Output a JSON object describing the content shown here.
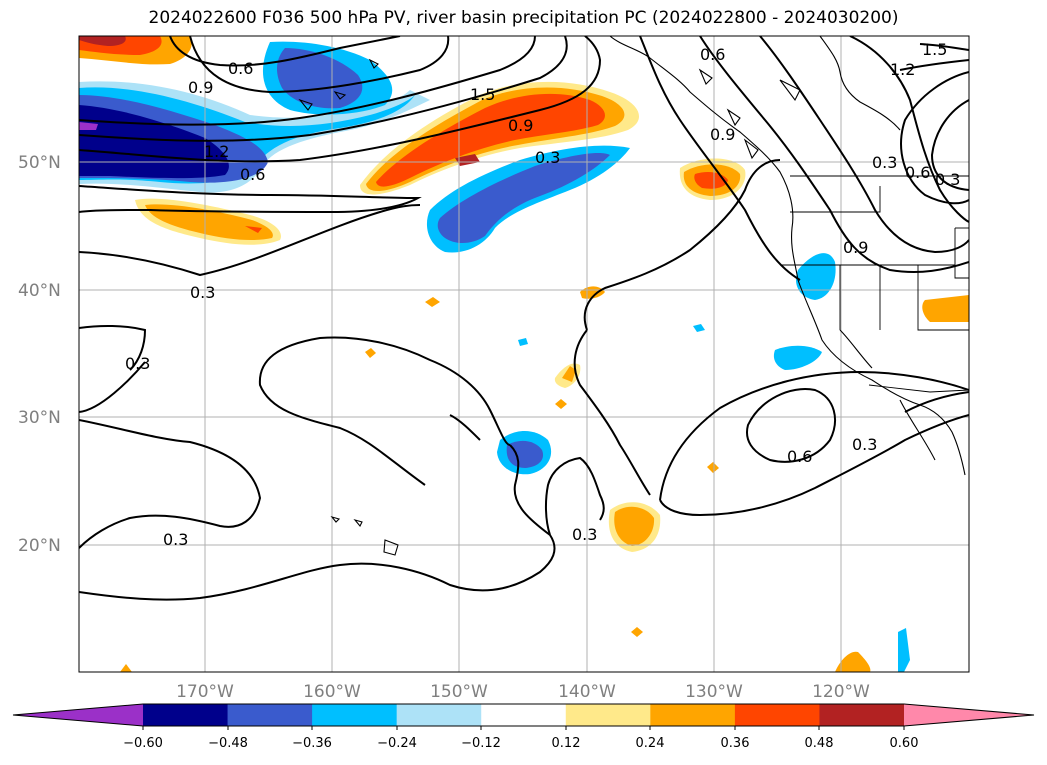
{
  "title": "2024022600 F036 500 hPa PV, river basin precipitation PC (2024022800 - 2024030200)",
  "latitude_labels": [
    "50°N",
    "40°N",
    "30°N",
    "20°N"
  ],
  "longitude_labels": [
    "170°W",
    "160°W",
    "150°W",
    "140°W",
    "130°W",
    "120°W"
  ],
  "pv_contour_labels": [
    "0.6",
    "0.9",
    "1.5",
    "0.9",
    "0.3",
    "0.6",
    "1.2",
    "0.6",
    "0.9",
    "1.2",
    "1.5",
    "0.9",
    "0.6",
    "0.3",
    "0.3",
    "0.3",
    "0.3",
    "0.3",
    "0.6",
    "0.3",
    "0.3"
  ],
  "colorbar": {
    "tick_labels": [
      "−0.60",
      "−0.48",
      "−0.36",
      "−0.24",
      "−0.12",
      "0.12",
      "0.24",
      "0.36",
      "0.48",
      "0.60"
    ],
    "colors": [
      "#9b30c8",
      "#00008b",
      "#3a5bcd",
      "#00bfff",
      "#ade2f7",
      "#ffffff",
      "#ffe98a",
      "#ffa500",
      "#ff4500",
      "#b22222",
      "#ff88aa"
    ]
  },
  "colors": {
    "grid": "#b0b0b0",
    "coast": "#000000",
    "contour": "#000000",
    "neg_strong": "#00008b",
    "neg_mid": "#3a5bcd",
    "neg_weak": "#00bfff",
    "neg_faint": "#ade2f7",
    "pos_faint": "#ffe98a",
    "pos_weak": "#ffa500",
    "pos_mid": "#ff4500",
    "pos_strong": "#b22222"
  }
}
